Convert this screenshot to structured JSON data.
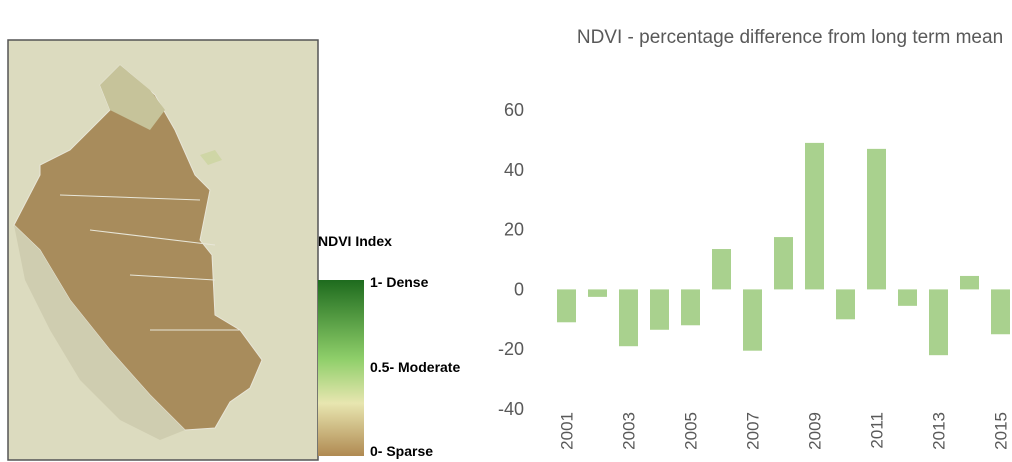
{
  "legend": {
    "title": "NDVI Index",
    "labels": [
      "1- Dense",
      "0.5- Moderate",
      "0- Sparse"
    ]
  },
  "chart_data": {
    "type": "bar",
    "title": "NDVI - percentage difference from long term mean",
    "categories": [
      "2001",
      null,
      "2003",
      null,
      "2005",
      null,
      "2007",
      null,
      "2009",
      null,
      "2011",
      null,
      "2013",
      null,
      "2015"
    ],
    "values": [
      -11,
      -2.5,
      -19,
      -13.5,
      -12,
      13.5,
      -20.5,
      17.5,
      49,
      -10,
      47,
      -5.5,
      -22,
      4.5,
      -15
    ],
    "color": "#a9d18e",
    "ylim": [
      -40,
      60
    ],
    "yticks": [
      -40,
      -20,
      0,
      20,
      40,
      60
    ]
  }
}
